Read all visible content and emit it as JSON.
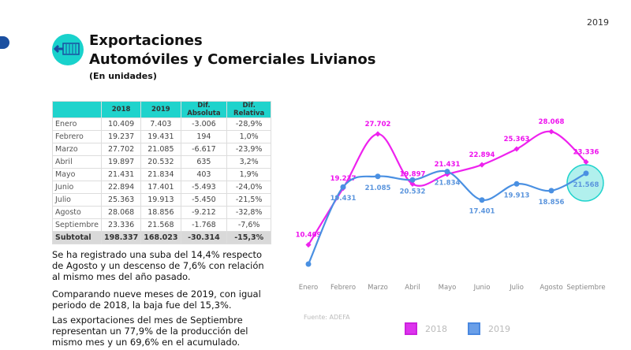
{
  "header": {
    "year": "2019",
    "title_line1": "Exportaciones",
    "title_line2": "Automóviles y Comerciales Livianos",
    "subtitle": "(En unidades)",
    "logo_icon": "truck-container-icon"
  },
  "table": {
    "headers": [
      "",
      "2018",
      "2019",
      "Dif. Absoluta",
      "Dif. Relativa"
    ],
    "rows": [
      [
        "Enero",
        "10.409",
        "7.403",
        "-3.006",
        "-28,9%"
      ],
      [
        "Febrero",
        "19.237",
        "19.431",
        "194",
        "1,0%"
      ],
      [
        "Marzo",
        "27.702",
        "21.085",
        "-6.617",
        "-23,9%"
      ],
      [
        "Abril",
        "19.897",
        "20.532",
        "635",
        "3,2%"
      ],
      [
        "Mayo",
        "21.431",
        "21.834",
        "403",
        "1,9%"
      ],
      [
        "Junio",
        "22.894",
        "17.401",
        "-5.493",
        "-24,0%"
      ],
      [
        "Julio",
        "25.363",
        "19.913",
        "-5.450",
        "-21,5%"
      ],
      [
        "Agosto",
        "28.068",
        "18.856",
        "-9.212",
        "-32,8%"
      ],
      [
        "Septiembre",
        "23.336",
        "21.568",
        "-1.768",
        "-7,6%"
      ]
    ],
    "subtotal": [
      "Subtotal",
      "198.337",
      "168.023",
      "-30.314",
      "-15,3%"
    ]
  },
  "text": {
    "p1": "Se ha registrado una suba del 14,4% respecto de Agosto y un descenso de 7,6% con relación al mismo mes del año pasado.",
    "p2": "Comparando nueve meses de 2019, con igual periodo de 2018, la baja fue del 15,3%.",
    "p3": "Las exportaciones del mes de Septiembre representan un 77,9% de la producción del mismo mes y un 69,6% en el acumulado."
  },
  "chart_data": {
    "type": "line",
    "categories": [
      "Enero",
      "Febrero",
      "Marzo",
      "Abril",
      "Mayo",
      "Junio",
      "Julio",
      "Agosto",
      "Septiembre"
    ],
    "series": [
      {
        "name": "2018",
        "color": "#ee22ee",
        "values": [
          10409,
          19237,
          27702,
          19897,
          21431,
          22894,
          25363,
          28068,
          23336
        ],
        "labels": [
          "10.409",
          "19.237",
          "27.702",
          "19.897",
          "21.431",
          "22.894",
          "25.363",
          "28.068",
          "23.336"
        ]
      },
      {
        "name": "2019",
        "color": "#4a90e2",
        "values": [
          7403,
          19431,
          21085,
          20532,
          21834,
          17401,
          19913,
          18856,
          21568
        ],
        "labels": [
          "",
          "19.431",
          "21.085",
          "20.532",
          "21.834",
          "17.401",
          "19.913",
          "18.856",
          "21.568"
        ]
      }
    ],
    "highlight": "Septiembre",
    "highlight_color": "#1fd3cc",
    "source": "Fuente: ADEFA",
    "legend_position": "bottom",
    "grid": false
  }
}
